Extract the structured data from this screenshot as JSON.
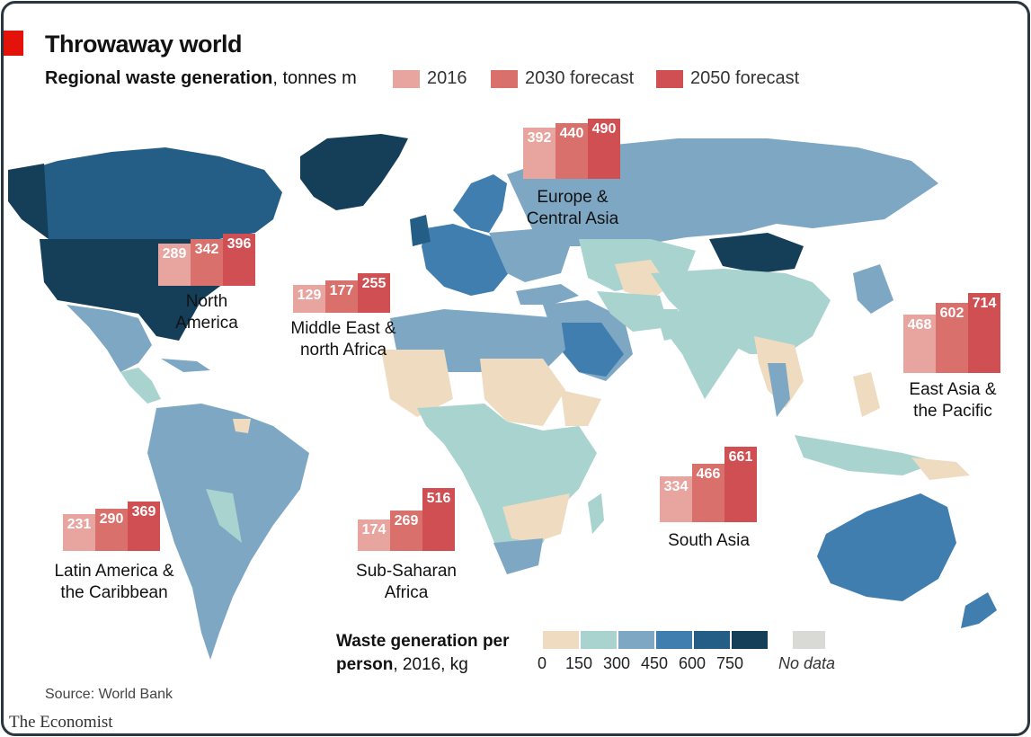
{
  "title": "Throwaway world",
  "subtitle_bold": "Regional waste generation",
  "subtitle_rest": ", tonnes m",
  "series_legend": [
    {
      "label": "2016",
      "color": "#e8a49f"
    },
    {
      "label": "2030 forecast",
      "color": "#d9706c"
    },
    {
      "label": "2050 forecast",
      "color": "#cf4f52"
    }
  ],
  "chart_data": {
    "type": "bar",
    "title": "Throwaway world",
    "ylabel": "Regional waste generation, tonnes m",
    "series_names": [
      "2016",
      "2030 forecast",
      "2050 forecast"
    ],
    "regions": [
      {
        "name": "North America",
        "label_lines": [
          "North",
          "America"
        ],
        "values": [
          289,
          342,
          396
        ]
      },
      {
        "name": "Middle East & north Africa",
        "label_lines": [
          "Middle East &",
          "north Africa"
        ],
        "values": [
          129,
          177,
          255
        ]
      },
      {
        "name": "Europe & Central Asia",
        "label_lines": [
          "Europe &",
          "Central Asia"
        ],
        "values": [
          392,
          440,
          490
        ]
      },
      {
        "name": "East Asia & the Pacific",
        "label_lines": [
          "East Asia &",
          "the Pacific"
        ],
        "values": [
          468,
          602,
          714
        ]
      },
      {
        "name": "South Asia",
        "label_lines": [
          "South Asia"
        ],
        "values": [
          334,
          466,
          661
        ]
      },
      {
        "name": "Sub-Saharan Africa",
        "label_lines": [
          "Sub-Saharan",
          "Africa"
        ],
        "values": [
          174,
          269,
          516
        ]
      },
      {
        "name": "Latin America & the Caribbean",
        "label_lines": [
          "Latin America &",
          "the Caribbean"
        ],
        "values": [
          231,
          290,
          369
        ]
      }
    ]
  },
  "per_person_legend": {
    "title_bold": "Waste generation per",
    "title_line2_bold": "person",
    "title_line2_rest": ", 2016, kg",
    "colors": [
      "#efdcc0",
      "#a9d3cf",
      "#7ea7c4",
      "#3f7eaf",
      "#245e86",
      "#153f58"
    ],
    "ticks": [
      "0",
      "150",
      "300",
      "450",
      "600",
      "750"
    ],
    "no_data_label": "No data",
    "no_data_color": "#d9d9d6"
  },
  "source": "Source: World Bank",
  "brand": "The Economist"
}
